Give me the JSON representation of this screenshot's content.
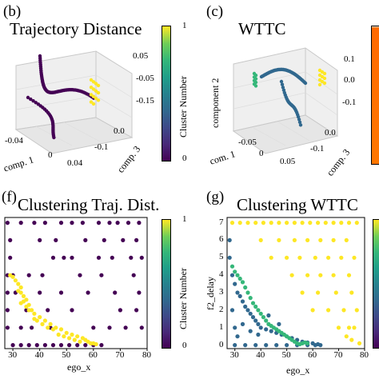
{
  "panels": {
    "b": {
      "label": "(b)",
      "title": "Trajectory Distance",
      "axis_x": "comp. 1",
      "axis_y": "comp. 3",
      "x_ticks": [
        "-0.04",
        "0",
        "0.04"
      ],
      "y_ticks": [
        "0.0",
        "-0.1"
      ],
      "z_ticks": [
        "0.05",
        "-0.05",
        "-0.15"
      ],
      "cbar_label": "Cluster Number",
      "cbar_ticks": [
        "1",
        "0"
      ]
    },
    "c": {
      "label": "(c)",
      "title": "WTTC",
      "axis_x": "com. 1",
      "axis_y": "comp. 3",
      "axis_z": "component 2",
      "x_ticks": [
        "-0.05",
        "0",
        "0.05"
      ],
      "y_ticks": [
        "0.0",
        "-0.1"
      ],
      "z_ticks": [
        "0.1",
        "0.0",
        "-0.1"
      ]
    },
    "f": {
      "label": "(f)",
      "title": "Clustering Traj. Dist.",
      "axis_x": "ego_x",
      "cbar_label": "Cluster Number",
      "cbar_ticks": [
        "1",
        "0"
      ],
      "x_ticks": [
        "30",
        "40",
        "50",
        "60",
        "70",
        "80"
      ]
    },
    "g": {
      "label": "(g)",
      "title": "Clustering WTTC",
      "axis_x": "ego_x",
      "axis_y": "f2_delay",
      "x_ticks": [
        "30",
        "40",
        "50",
        "60",
        "70",
        "80"
      ],
      "y_ticks": [
        "0",
        "1",
        "2",
        "3",
        "4",
        "5",
        "6",
        "7"
      ]
    }
  },
  "colors": {
    "purple": "#440154",
    "yellow": "#fde725",
    "teal": "#31688e",
    "green": "#35b779",
    "aqua": "#21918c",
    "orange": "#ff7700"
  },
  "chart_data": [
    {
      "type": "scatter",
      "panel": "f",
      "xlim": [
        27,
        80
      ],
      "ylim": [
        -0.2,
        7.3
      ],
      "xlabel": "ego_x",
      "series": [
        {
          "color": "purple",
          "points": [
            [
              30,
              0
            ],
            [
              33,
              0
            ],
            [
              36,
              0
            ],
            [
              39,
              0
            ],
            [
              42,
              0
            ],
            [
              45,
              0
            ],
            [
              48,
              0
            ],
            [
              51,
              0
            ],
            [
              54,
              0
            ],
            [
              57,
              0
            ],
            [
              60,
              0
            ],
            [
              63,
              0
            ],
            [
              28,
              1
            ],
            [
              28,
              2
            ],
            [
              28,
              3
            ],
            [
              28,
              4
            ],
            [
              29,
              5
            ],
            [
              29,
              6
            ],
            [
              28,
              7
            ],
            [
              33,
              7
            ],
            [
              38,
              7
            ],
            [
              42,
              7
            ],
            [
              46,
              6
            ],
            [
              48,
              7
            ],
            [
              52,
              7
            ],
            [
              56,
              7
            ],
            [
              62,
              7
            ],
            [
              66,
              7
            ],
            [
              69,
              7
            ],
            [
              73,
              7
            ],
            [
              77,
              7
            ],
            [
              76,
              6
            ],
            [
              78,
              5
            ],
            [
              75,
              4
            ],
            [
              77,
              3
            ],
            [
              76,
              2
            ],
            [
              78,
              1
            ],
            [
              71,
              6
            ],
            [
              67,
              5
            ],
            [
              62,
              5
            ],
            [
              57,
              6
            ],
            [
              52,
              5
            ],
            [
              45,
              5
            ],
            [
              40,
              6
            ],
            [
              36,
              4
            ],
            [
              31,
              3
            ],
            [
              33,
              1
            ],
            [
              35,
              2
            ],
            [
              43,
              2
            ],
            [
              44,
              1
            ],
            [
              48,
              3
            ],
            [
              52,
              2
            ],
            [
              58,
              3
            ],
            [
              63,
              4
            ],
            [
              68,
              3
            ],
            [
              72,
              1
            ],
            [
              70,
              2
            ],
            [
              55,
              4
            ],
            [
              40,
              3
            ],
            [
              37,
              1
            ],
            [
              30,
              4
            ],
            [
              60,
              1
            ],
            [
              66,
              1
            ],
            [
              41,
              4
            ],
            [
              49,
              5
            ],
            [
              64,
              6
            ],
            [
              74,
              5
            ]
          ]
        },
        {
          "color": "yellow",
          "points": [
            [
              29,
              4
            ],
            [
              30,
              3.9
            ],
            [
              31,
              3.7
            ],
            [
              32,
              3.5
            ],
            [
              33,
              3.3
            ],
            [
              33,
              3
            ],
            [
              34,
              2.8
            ],
            [
              35,
              2.6
            ],
            [
              36,
              2.3
            ],
            [
              37,
              2
            ],
            [
              38,
              1.8
            ],
            [
              40,
              1.6
            ],
            [
              42,
              1.4
            ],
            [
              44,
              1.2
            ],
            [
              46,
              1
            ],
            [
              48,
              0.9
            ],
            [
              50,
              0.7
            ],
            [
              52,
              0.6
            ],
            [
              54,
              0.5
            ],
            [
              56,
              0.4
            ],
            [
              57,
              0.3
            ],
            [
              58,
              0.2
            ],
            [
              59,
              0.1
            ],
            [
              60,
              0.1
            ],
            [
              61,
              0.05
            ],
            [
              55,
              0.2
            ],
            [
              53,
              0.3
            ],
            [
              51,
              0.4
            ],
            [
              49,
              0.5
            ],
            [
              47,
              0.6
            ],
            [
              45,
              0.9
            ],
            [
              43,
              1
            ],
            [
              41,
              1.2
            ],
            [
              39,
              1.4
            ],
            [
              38,
              1.5
            ],
            [
              36,
              2
            ],
            [
              35,
              2.2
            ],
            [
              34,
              2.5
            ],
            [
              33,
              2.4
            ],
            [
              32,
              3.1
            ]
          ]
        }
      ]
    },
    {
      "type": "scatter",
      "panel": "g",
      "xlim": [
        27,
        80
      ],
      "ylim": [
        -0.2,
        7.3
      ],
      "xlabel": "ego_x",
      "ylabel": "f2_delay",
      "series": [
        {
          "color": "yellow",
          "points": [
            [
              29,
              7
            ],
            [
              32,
              7
            ],
            [
              35,
              7
            ],
            [
              38,
              7
            ],
            [
              41,
              7
            ],
            [
              44,
              7
            ],
            [
              47,
              7
            ],
            [
              50,
              7
            ],
            [
              53,
              7
            ],
            [
              56,
              7
            ],
            [
              59,
              7
            ],
            [
              62,
              7
            ],
            [
              65,
              7
            ],
            [
              68,
              7
            ],
            [
              71,
              7
            ],
            [
              74,
              7
            ],
            [
              77,
              7
            ],
            [
              40,
              6
            ],
            [
              47,
              6
            ],
            [
              53,
              6
            ],
            [
              58,
              6
            ],
            [
              63,
              6
            ],
            [
              68,
              6
            ],
            [
              73,
              6
            ],
            [
              44,
              5
            ],
            [
              50,
              5
            ],
            [
              55,
              5
            ],
            [
              61,
              5
            ],
            [
              66,
              5
            ],
            [
              71,
              5
            ],
            [
              76,
              5
            ],
            [
              52,
              4
            ],
            [
              58,
              4
            ],
            [
              63,
              4
            ],
            [
              68,
              4
            ],
            [
              74,
              4
            ],
            [
              56,
              3
            ],
            [
              62,
              3
            ],
            [
              69,
              3
            ],
            [
              75,
              3
            ],
            [
              60,
              2
            ],
            [
              66,
              2
            ],
            [
              72,
              2
            ],
            [
              77,
              2
            ],
            [
              70,
              1
            ],
            [
              74,
              1
            ],
            [
              76,
              1
            ],
            [
              73,
              0.5
            ],
            [
              75,
              0.3
            ],
            [
              78,
              0.1
            ]
          ]
        },
        {
          "color": "teal",
          "points": [
            [
              29,
              4
            ],
            [
              30,
              3.5
            ],
            [
              31,
              3
            ],
            [
              32,
              2.8
            ],
            [
              33,
              2.5
            ],
            [
              34,
              2.2
            ],
            [
              35,
              2
            ],
            [
              36,
              1.8
            ],
            [
              37,
              1.6
            ],
            [
              38,
              1.4
            ],
            [
              39,
              1.2
            ],
            [
              40,
              1
            ],
            [
              42,
              0.9
            ],
            [
              44,
              0.8
            ],
            [
              46,
              0.7
            ],
            [
              48,
              0.6
            ],
            [
              50,
              0.5
            ],
            [
              52,
              0.4
            ],
            [
              54,
              0.3
            ],
            [
              56,
              0.2
            ],
            [
              58,
              0.15
            ],
            [
              60,
              0.1
            ],
            [
              62,
              0.05
            ],
            [
              28,
              5
            ],
            [
              28,
              6
            ],
            [
              29,
              2
            ],
            [
              30,
              1
            ],
            [
              31,
              0.5
            ],
            [
              33,
              1.2
            ],
            [
              36,
              0.8
            ],
            [
              39,
              0.6
            ],
            [
              43,
              1.7
            ],
            [
              47,
              1.2
            ],
            [
              30,
              0
            ],
            [
              34,
              0
            ],
            [
              38,
              0
            ],
            [
              42,
              0
            ],
            [
              46,
              0
            ],
            [
              50,
              0
            ],
            [
              54,
              0
            ],
            [
              58,
              0
            ],
            [
              61,
              0
            ],
            [
              63,
              0
            ]
          ]
        },
        {
          "color": "green",
          "points": [
            [
              29,
              4.5
            ],
            [
              30,
              4.2
            ],
            [
              31,
              4
            ],
            [
              32,
              3.8
            ],
            [
              33,
              3.6
            ],
            [
              34,
              3.3
            ],
            [
              35,
              3
            ],
            [
              36,
              2.7
            ],
            [
              37,
              2.4
            ],
            [
              38,
              2.2
            ],
            [
              39,
              2
            ],
            [
              40,
              1.8
            ],
            [
              41,
              1.6
            ],
            [
              42,
              1.4
            ],
            [
              43,
              1.2
            ],
            [
              44,
              1.1
            ],
            [
              45,
              1
            ],
            [
              46,
              0.9
            ],
            [
              47,
              0.8
            ],
            [
              48,
              0.7
            ],
            [
              49,
              0.6
            ],
            [
              50,
              0.5
            ],
            [
              51,
              0.4
            ],
            [
              52,
              0.3
            ],
            [
              53,
              0.2
            ],
            [
              54,
              0.1
            ],
            [
              55,
              0.05
            ],
            [
              56,
              0.1
            ],
            [
              57,
              0.15
            ],
            [
              58,
              0.1
            ]
          ]
        }
      ]
    }
  ]
}
